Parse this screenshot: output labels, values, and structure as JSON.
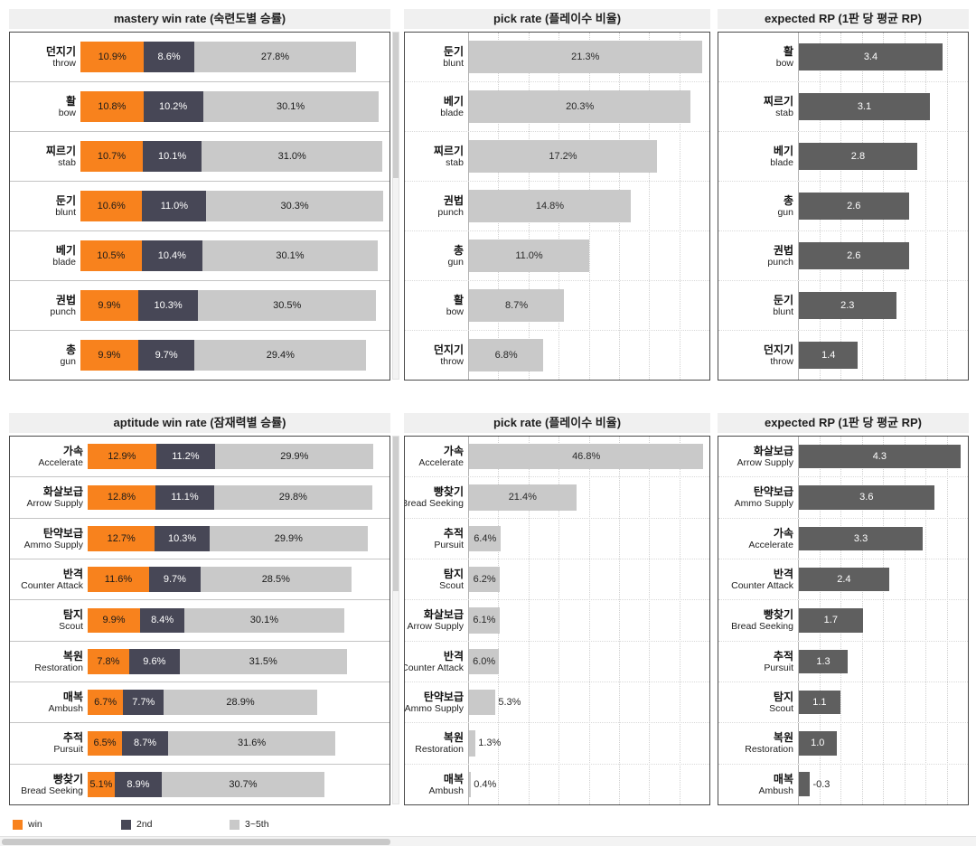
{
  "colors": {
    "win": "#f8821d",
    "second": "#474756",
    "rest": "#c9c9c9",
    "pick": "#c9c9c9",
    "rp": "#5f5f5f"
  },
  "legend": {
    "items": [
      {
        "label": "win",
        "color": "win"
      },
      {
        "label": "2nd",
        "color": "second"
      },
      {
        "label": "3~5th",
        "color": "rest"
      }
    ]
  },
  "chart_data": [
    {
      "title": "mastery win rate (숙련도별 승률)",
      "type": "stacked_bar",
      "xlabel": "",
      "ylabel": "",
      "xlim": [
        0,
        53
      ],
      "grid": false,
      "label_width": 78,
      "bar_height_pct": 62,
      "value_suffix": "%",
      "categories": [
        {
          "ko": "던지기",
          "en": "throw"
        },
        {
          "ko": "활",
          "en": "bow"
        },
        {
          "ko": "찌르기",
          "en": "stab"
        },
        {
          "ko": "둔기",
          "en": "blunt"
        },
        {
          "ko": "베기",
          "en": "blade"
        },
        {
          "ko": "권법",
          "en": "punch"
        },
        {
          "ko": "총",
          "en": "gun"
        }
      ],
      "series": [
        {
          "name": "win",
          "color_key": "win",
          "label_color": "#1a1a1a",
          "values": [
            10.9,
            10.8,
            10.7,
            10.6,
            10.5,
            9.9,
            9.9
          ]
        },
        {
          "name": "2nd",
          "color_key": "second",
          "label_color": "#ffffff",
          "values": [
            8.6,
            10.2,
            10.1,
            11.0,
            10.4,
            10.3,
            9.7
          ]
        },
        {
          "name": "3~5th",
          "color_key": "rest",
          "label_color": "#1a1a1a",
          "values": [
            27.8,
            30.1,
            31.0,
            30.3,
            30.1,
            30.5,
            29.4
          ]
        }
      ]
    },
    {
      "title": "pick rate (플레이수 비율)",
      "type": "bar",
      "xlabel": "",
      "ylabel": "",
      "xlim": [
        0,
        22
      ],
      "grid": true,
      "label_width": 70,
      "bar_height_pct": 68,
      "value_suffix": "%",
      "bar_color_key": "pick",
      "label_inside_color": "#2a2a2a",
      "categories": [
        {
          "ko": "둔기",
          "en": "blunt"
        },
        {
          "ko": "베기",
          "en": "blade"
        },
        {
          "ko": "찌르기",
          "en": "stab"
        },
        {
          "ko": "권법",
          "en": "punch"
        },
        {
          "ko": "총",
          "en": "gun"
        },
        {
          "ko": "활",
          "en": "bow"
        },
        {
          "ko": "던지기",
          "en": "throw"
        }
      ],
      "values": [
        21.3,
        20.3,
        17.2,
        14.8,
        11.0,
        8.7,
        6.8
      ]
    },
    {
      "title": "expected RP (1판 당 평균 RP)",
      "type": "bar",
      "xlabel": "",
      "ylabel": "",
      "xlim": [
        0,
        4
      ],
      "grid": true,
      "label_width": 88,
      "bar_height_pct": 56,
      "value_suffix": "",
      "bar_color_key": "rp",
      "label_inside_color": "#ffffff",
      "categories": [
        {
          "ko": "활",
          "en": "bow"
        },
        {
          "ko": "찌르기",
          "en": "stab"
        },
        {
          "ko": "베기",
          "en": "blade"
        },
        {
          "ko": "총",
          "en": "gun"
        },
        {
          "ko": "권법",
          "en": "punch"
        },
        {
          "ko": "둔기",
          "en": "blunt"
        },
        {
          "ko": "던지기",
          "en": "throw"
        }
      ],
      "values": [
        3.4,
        3.1,
        2.8,
        2.6,
        2.6,
        2.3,
        1.4
      ]
    },
    {
      "title": "aptitude win rate (잠재력별 승률)",
      "type": "stacked_bar",
      "xlabel": "",
      "ylabel": "",
      "xlim": [
        0,
        57
      ],
      "grid": false,
      "label_width": 86,
      "bar_height_pct": 62,
      "value_suffix": "%",
      "categories": [
        {
          "ko": "가속",
          "en": "Accelerate"
        },
        {
          "ko": "화살보급",
          "en": "Arrow Supply"
        },
        {
          "ko": "탄약보급",
          "en": "Ammo Supply"
        },
        {
          "ko": "반격",
          "en": "Counter Attack"
        },
        {
          "ko": "탐지",
          "en": "Scout"
        },
        {
          "ko": "복원",
          "en": "Restoration"
        },
        {
          "ko": "매복",
          "en": "Ambush"
        },
        {
          "ko": "추적",
          "en": "Pursuit"
        },
        {
          "ko": "빵찾기",
          "en": "Bread Seeking"
        }
      ],
      "series": [
        {
          "name": "win",
          "color_key": "win",
          "label_color": "#1a1a1a",
          "values": [
            12.9,
            12.8,
            12.7,
            11.6,
            9.9,
            7.8,
            6.7,
            6.5,
            5.1
          ]
        },
        {
          "name": "2nd",
          "color_key": "second",
          "label_color": "#ffffff",
          "values": [
            11.2,
            11.1,
            10.3,
            9.7,
            8.4,
            9.6,
            7.7,
            8.7,
            8.9
          ]
        },
        {
          "name": "3~5th",
          "color_key": "rest",
          "label_color": "#1a1a1a",
          "values": [
            29.9,
            29.8,
            29.9,
            28.5,
            30.1,
            31.5,
            28.9,
            31.6,
            30.7
          ]
        }
      ]
    },
    {
      "title": "pick rate (플레이수 비율)",
      "type": "bar",
      "xlabel": "",
      "ylabel": "",
      "xlim": [
        0,
        48
      ],
      "grid": true,
      "label_width": 70,
      "bar_height_pct": 64,
      "value_suffix": "%",
      "bar_color_key": "pick",
      "label_inside_color": "#2a2a2a",
      "categories": [
        {
          "ko": "가속",
          "en": "Accelerate"
        },
        {
          "ko": "빵찾기",
          "en": "Bread Seeking"
        },
        {
          "ko": "추적",
          "en": "Pursuit"
        },
        {
          "ko": "탐지",
          "en": "Scout"
        },
        {
          "ko": "화살보급",
          "en": "Arrow Supply"
        },
        {
          "ko": "반격",
          "en": "Counter Attack"
        },
        {
          "ko": "탄약보급",
          "en": "Ammo Supply"
        },
        {
          "ko": "복원",
          "en": "Restoration"
        },
        {
          "ko": "매복",
          "en": "Ambush"
        }
      ],
      "values": [
        46.8,
        21.4,
        6.4,
        6.2,
        6.1,
        6.0,
        5.3,
        1.3,
        0.4
      ]
    },
    {
      "title": "expected RP (1판 당 평균 RP)",
      "type": "bar",
      "xlabel": "",
      "ylabel": "",
      "xlim": [
        0,
        4.5
      ],
      "grid": true,
      "label_width": 88,
      "bar_height_pct": 60,
      "value_suffix": "",
      "bar_color_key": "rp",
      "label_inside_color": "#ffffff",
      "categories": [
        {
          "ko": "화살보급",
          "en": "Arrow Supply"
        },
        {
          "ko": "탄약보급",
          "en": "Ammo Supply"
        },
        {
          "ko": "가속",
          "en": "Accelerate"
        },
        {
          "ko": "반격",
          "en": "Counter Attack"
        },
        {
          "ko": "빵찾기",
          "en": "Bread Seeking"
        },
        {
          "ko": "추적",
          "en": "Pursuit"
        },
        {
          "ko": "탐지",
          "en": "Scout"
        },
        {
          "ko": "복원",
          "en": "Restoration"
        },
        {
          "ko": "매복",
          "en": "Ambush"
        }
      ],
      "values": [
        4.3,
        3.6,
        3.3,
        2.4,
        1.7,
        1.3,
        1.1,
        1.0,
        -0.3
      ]
    }
  ]
}
